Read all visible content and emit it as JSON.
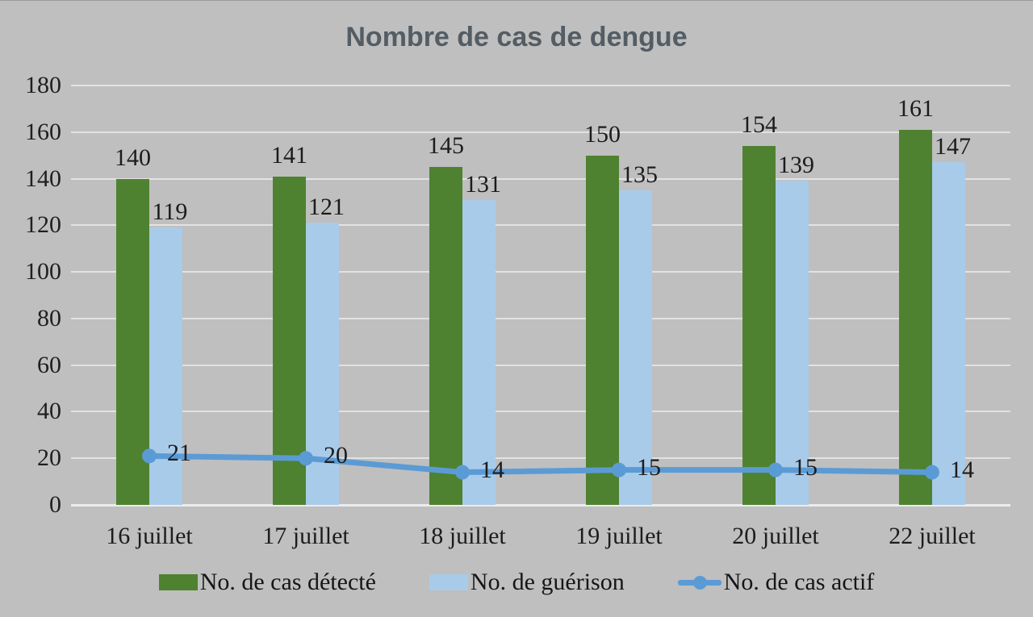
{
  "title": "Nombre de cas de dengue",
  "chart_data": {
    "type": "bar",
    "subtype": "grouped-bars-with-line-overlay",
    "title": "Nombre de cas de dengue",
    "categories": [
      "16 juillet",
      "17 juillet",
      "18 juillet",
      "19 juillet",
      "20 juillet",
      "22 juillet"
    ],
    "series": [
      {
        "name": "No. de cas détecté",
        "chart_type": "bar",
        "color": "#4e8230",
        "values": [
          140,
          141,
          145,
          150,
          154,
          161
        ]
      },
      {
        "name": "No. de guérison",
        "chart_type": "bar",
        "color": "#a9cbea",
        "values": [
          119,
          121,
          131,
          135,
          139,
          147
        ]
      },
      {
        "name": "No. de cas actif",
        "chart_type": "line",
        "color": "#5b9bd5",
        "values": [
          21,
          20,
          14,
          15,
          15,
          14
        ]
      }
    ],
    "xlabel": "",
    "ylabel": "",
    "ylim": [
      0,
      180
    ],
    "yticks": [
      0,
      20,
      40,
      60,
      80,
      100,
      120,
      140,
      160,
      180
    ],
    "grid": true,
    "data_labels": true,
    "legend_position": "bottom"
  },
  "colors": {
    "background": "#bfbfbf",
    "gridline": "#e2e2e2",
    "axis_line": "#ececec",
    "title_text": "#545c64",
    "label_text": "#1c1c1c"
  }
}
